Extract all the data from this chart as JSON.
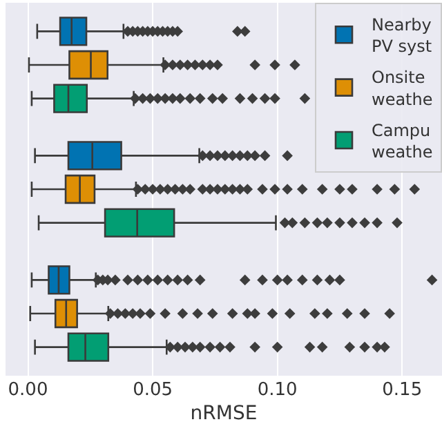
{
  "chart_data": {
    "type": "box",
    "orientation": "horizontal",
    "categories": [
      null,
      null,
      null
    ],
    "xlabel": "nRMSE",
    "xlim": [
      -0.009,
      0.166
    ],
    "xticks": [
      {
        "value": 0,
        "label": "0.00"
      },
      {
        "value": 0.05,
        "label": "0.05"
      },
      {
        "value": 0.1,
        "label": "0.10"
      },
      {
        "value": 0.15,
        "label": "0.15"
      }
    ],
    "grid": "x",
    "legend": "top right",
    "tick_labels": "x",
    "series": [
      {
        "name": "Nearby\nPV syst",
        "color": "#0173b2",
        "boxes": [
          {
            "low": 0.0037,
            "q1": 0.0129,
            "median": 0.0175,
            "q3": 0.0234,
            "high": 0.0383,
            "outliers": [
              0.04,
              0.042,
              0.044,
              0.046,
              0.048,
              0.05,
              0.052,
              0.054,
              0.056,
              0.058,
              0.06,
              0.084,
              0.087
            ]
          },
          {
            "low": 0.0028,
            "q1": 0.0162,
            "median": 0.0258,
            "q3": 0.0374,
            "high": 0.0687,
            "outliers": [
              0.07,
              0.073,
              0.076,
              0.079,
              0.082,
              0.085,
              0.088,
              0.091,
              0.095,
              0.104
            ]
          },
          {
            "low": 0.0015,
            "q1": 0.0083,
            "median": 0.0123,
            "q3": 0.0166,
            "high": 0.0272,
            "outliers": [
              0.028,
              0.03,
              0.032,
              0.035,
              0.04,
              0.044,
              0.048,
              0.052,
              0.056,
              0.06,
              0.064,
              0.069,
              0.087,
              0.094,
              0.1,
              0.104,
              0.11,
              0.116,
              0.121,
              0.125,
              0.162
            ]
          }
        ]
      },
      {
        "name": "Onsite\nweathe",
        "color": "#de8f05",
        "boxes": [
          {
            "low": 0.0004,
            "q1": 0.0166,
            "median": 0.0252,
            "q3": 0.0319,
            "high": 0.0543,
            "outliers": [
              0.055,
              0.058,
              0.061,
              0.064,
              0.067,
              0.07,
              0.073,
              0.076,
              0.091,
              0.099,
              0.107
            ]
          },
          {
            "low": 0.0015,
            "q1": 0.0151,
            "median": 0.0208,
            "q3": 0.0267,
            "high": 0.0433,
            "outliers": [
              0.044,
              0.047,
              0.05,
              0.053,
              0.056,
              0.059,
              0.062,
              0.065,
              0.07,
              0.073,
              0.076,
              0.079,
              0.082,
              0.085,
              0.088,
              0.094,
              0.099,
              0.104,
              0.11,
              0.118,
              0.125,
              0.13,
              0.14,
              0.147,
              0.155
            ]
          },
          {
            "low": 0.0009,
            "q1": 0.011,
            "median": 0.0153,
            "q3": 0.0197,
            "high": 0.0322,
            "outliers": [
              0.033,
              0.036,
              0.039,
              0.042,
              0.045,
              0.049,
              0.055,
              0.062,
              0.068,
              0.074,
              0.082,
              0.088,
              0.091,
              0.098,
              0.105,
              0.115,
              0.12,
              0.128,
              0.135,
              0.145
            ]
          }
        ]
      },
      {
        "name": "Campu\nweathe",
        "color": "#029e73",
        "boxes": [
          {
            "low": 0.0015,
            "q1": 0.0105,
            "median": 0.0162,
            "q3": 0.0236,
            "high": 0.0424,
            "outliers": [
              0.043,
              0.046,
              0.049,
              0.052,
              0.055,
              0.058,
              0.061,
              0.065,
              0.069,
              0.074,
              0.078,
              0.085,
              0.09,
              0.095,
              0.099,
              0.111
            ]
          },
          {
            "low": 0.0043,
            "q1": 0.0309,
            "median": 0.0438,
            "q3": 0.0586,
            "high": 0.0994,
            "outliers": [
              0.103,
              0.106,
              0.111,
              0.116,
              0.12,
              0.125,
              0.13,
              0.135,
              0.14,
              0.148
            ]
          },
          {
            "low": 0.0028,
            "q1": 0.0162,
            "median": 0.023,
            "q3": 0.0322,
            "high": 0.0556,
            "outliers": [
              0.057,
              0.06,
              0.063,
              0.066,
              0.069,
              0.073,
              0.077,
              0.081,
              0.091,
              0.1,
              0.113,
              0.118,
              0.129,
              0.135,
              0.14,
              0.143
            ]
          }
        ]
      }
    ]
  }
}
